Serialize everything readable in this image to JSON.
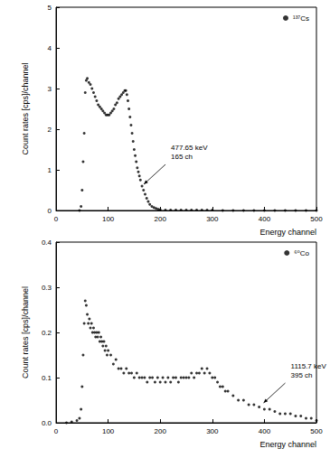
{
  "chart_data": [
    {
      "type": "scatter",
      "x_label": "Energy channel",
      "y_label": "Count rates [cps]/channel",
      "xlim": [
        0,
        500
      ],
      "xticks": [
        0,
        100,
        200,
        300,
        400,
        500
      ],
      "ylim": [
        0,
        5
      ],
      "yticks": [
        0,
        1,
        2,
        3,
        4,
        5
      ],
      "grid": false,
      "legend": "upper right",
      "series": [
        {
          "name": "¹³⁷Cs",
          "color": "#000000",
          "marker": "circle",
          "x": [
            45,
            48,
            50,
            52,
            54,
            56,
            58,
            60,
            63,
            66,
            69,
            72,
            75,
            78,
            81,
            84,
            87,
            90,
            93,
            96,
            99,
            102,
            105,
            108,
            111,
            114,
            117,
            120,
            123,
            126,
            129,
            132,
            134,
            136,
            138,
            140,
            142,
            144,
            146,
            148,
            150,
            152,
            154,
            156,
            158,
            160,
            162,
            165,
            168,
            171,
            174,
            177,
            180,
            184,
            188,
            192,
            196,
            200,
            210,
            220,
            230,
            240,
            250,
            260,
            270,
            280,
            290,
            300,
            320,
            340,
            360,
            380,
            400,
            420,
            440,
            460,
            480,
            500
          ],
          "values": [
            0,
            0.1,
            0.5,
            1.2,
            1.9,
            2.9,
            3.2,
            3.25,
            3.15,
            3.1,
            3.0,
            2.9,
            2.8,
            2.7,
            2.6,
            2.55,
            2.5,
            2.45,
            2.4,
            2.35,
            2.35,
            2.35,
            2.4,
            2.45,
            2.5,
            2.6,
            2.65,
            2.75,
            2.8,
            2.85,
            2.9,
            2.95,
            2.95,
            2.85,
            2.7,
            2.5,
            2.3,
            2.1,
            1.9,
            1.7,
            1.5,
            1.35,
            1.2,
            1.05,
            0.95,
            0.85,
            0.75,
            0.6,
            0.5,
            0.4,
            0.3,
            0.22,
            0.15,
            0.1,
            0.07,
            0.05,
            0.03,
            0.02,
            0.01,
            0.01,
            0.01,
            0.01,
            0.01,
            0.01,
            0.01,
            0.01,
            0.01,
            0.01,
            0,
            0,
            0,
            0,
            0,
            0,
            0,
            0,
            0,
            0
          ]
        }
      ],
      "annotations": [
        {
          "text": [
            "477.65 keV",
            "165 ch"
          ],
          "x": 165,
          "y": 0.6
        }
      ]
    },
    {
      "type": "scatter",
      "x_label": "Energy channel",
      "y_label": "Count rates [cps]/channel",
      "xlim": [
        0,
        500
      ],
      "xticks": [
        0,
        100,
        200,
        300,
        400,
        500
      ],
      "ylim": [
        0,
        0.4
      ],
      "yticks": [
        {
          "value": 0,
          "label": "0.0"
        },
        0.1,
        0.2,
        0.3,
        0.4
      ],
      "grid": false,
      "legend": "upper right",
      "series": [
        {
          "name": "⁶⁰Co",
          "color": "#000000",
          "marker": "circle",
          "x": [
            20,
            30,
            40,
            45,
            48,
            50,
            52,
            54,
            56,
            58,
            60,
            62,
            64,
            66,
            68,
            70,
            72,
            74,
            76,
            78,
            80,
            82,
            84,
            86,
            88,
            90,
            92,
            94,
            96,
            98,
            100,
            105,
            110,
            115,
            120,
            125,
            130,
            135,
            140,
            145,
            150,
            155,
            160,
            165,
            170,
            175,
            180,
            185,
            190,
            195,
            200,
            205,
            210,
            215,
            220,
            225,
            230,
            235,
            240,
            245,
            250,
            255,
            260,
            265,
            270,
            275,
            280,
            285,
            290,
            295,
            300,
            305,
            310,
            315,
            320,
            325,
            330,
            340,
            350,
            360,
            370,
            380,
            390,
            400,
            410,
            420,
            430,
            440,
            450,
            460,
            470,
            480,
            490,
            500
          ],
          "values": [
            0,
            0.002,
            0.005,
            0.01,
            0.03,
            0.08,
            0.15,
            0.22,
            0.27,
            0.26,
            0.24,
            0.22,
            0.23,
            0.21,
            0.22,
            0.2,
            0.21,
            0.2,
            0.19,
            0.2,
            0.19,
            0.2,
            0.18,
            0.19,
            0.18,
            0.17,
            0.18,
            0.16,
            0.17,
            0.15,
            0.16,
            0.15,
            0.13,
            0.14,
            0.12,
            0.12,
            0.11,
            0.12,
            0.11,
            0.11,
            0.1,
            0.11,
            0.1,
            0.1,
            0.1,
            0.09,
            0.1,
            0.1,
            0.09,
            0.1,
            0.09,
            0.1,
            0.09,
            0.1,
            0.09,
            0.1,
            0.1,
            0.09,
            0.1,
            0.1,
            0.1,
            0.1,
            0.11,
            0.1,
            0.11,
            0.11,
            0.12,
            0.11,
            0.12,
            0.11,
            0.1,
            0.1,
            0.09,
            0.08,
            0.08,
            0.07,
            0.07,
            0.06,
            0.05,
            0.05,
            0.04,
            0.04,
            0.035,
            0.03,
            0.03,
            0.025,
            0.02,
            0.02,
            0.02,
            0.015,
            0.015,
            0.01,
            0.01,
            0.005
          ]
        }
      ],
      "annotations": [
        {
          "text": [
            "1115.7 keV",
            "395 ch"
          ],
          "x": 395,
          "y": 0.04
        }
      ]
    }
  ]
}
